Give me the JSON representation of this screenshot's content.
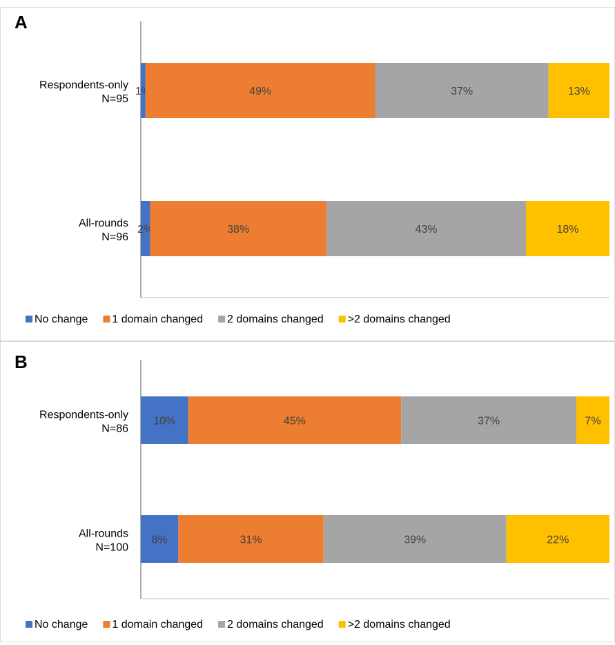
{
  "chart_data": [
    {
      "type": "bar",
      "orientation": "horizontal",
      "stacked": "percent",
      "panel_label": "A",
      "categories": [
        "Respondents-only\nN=95",
        "All-rounds\nN=96"
      ],
      "series": [
        {
          "name": "No change",
          "values": [
            1,
            2
          ],
          "labels": [
            "1%",
            "2%"
          ]
        },
        {
          "name": "1 domain changed",
          "values": [
            49,
            38
          ],
          "labels": [
            "49%",
            "38%"
          ]
        },
        {
          "name": "2 domains changed",
          "values": [
            37,
            43
          ],
          "labels": [
            "37%",
            "43%"
          ]
        },
        {
          "name": ">2 domains changed",
          "values": [
            13,
            18
          ],
          "labels": [
            "13%",
            "18%"
          ]
        }
      ],
      "xlim": [
        0,
        100
      ],
      "grid": false,
      "legend_position": "bottom"
    },
    {
      "type": "bar",
      "orientation": "horizontal",
      "stacked": "percent",
      "panel_label": "B",
      "categories": [
        "Respondents-only\nN=86",
        "All-rounds\nN=100"
      ],
      "series": [
        {
          "name": "No change",
          "values": [
            10,
            8
          ],
          "labels": [
            "10%",
            "8%"
          ]
        },
        {
          "name": "1 domain changed",
          "values": [
            45,
            31
          ],
          "labels": [
            "45%",
            "31%"
          ]
        },
        {
          "name": "2 domains changed",
          "values": [
            37,
            39
          ],
          "labels": [
            "37%",
            "39%"
          ]
        },
        {
          "name": ">2 domains changed",
          "values": [
            7,
            22
          ],
          "labels": [
            "7%",
            "22%"
          ]
        }
      ],
      "xlim": [
        0,
        100
      ],
      "grid": false,
      "legend_position": "bottom"
    }
  ],
  "colors": [
    "#4472C4",
    "#ED7D31",
    "#A5A5A5",
    "#FFC000"
  ]
}
